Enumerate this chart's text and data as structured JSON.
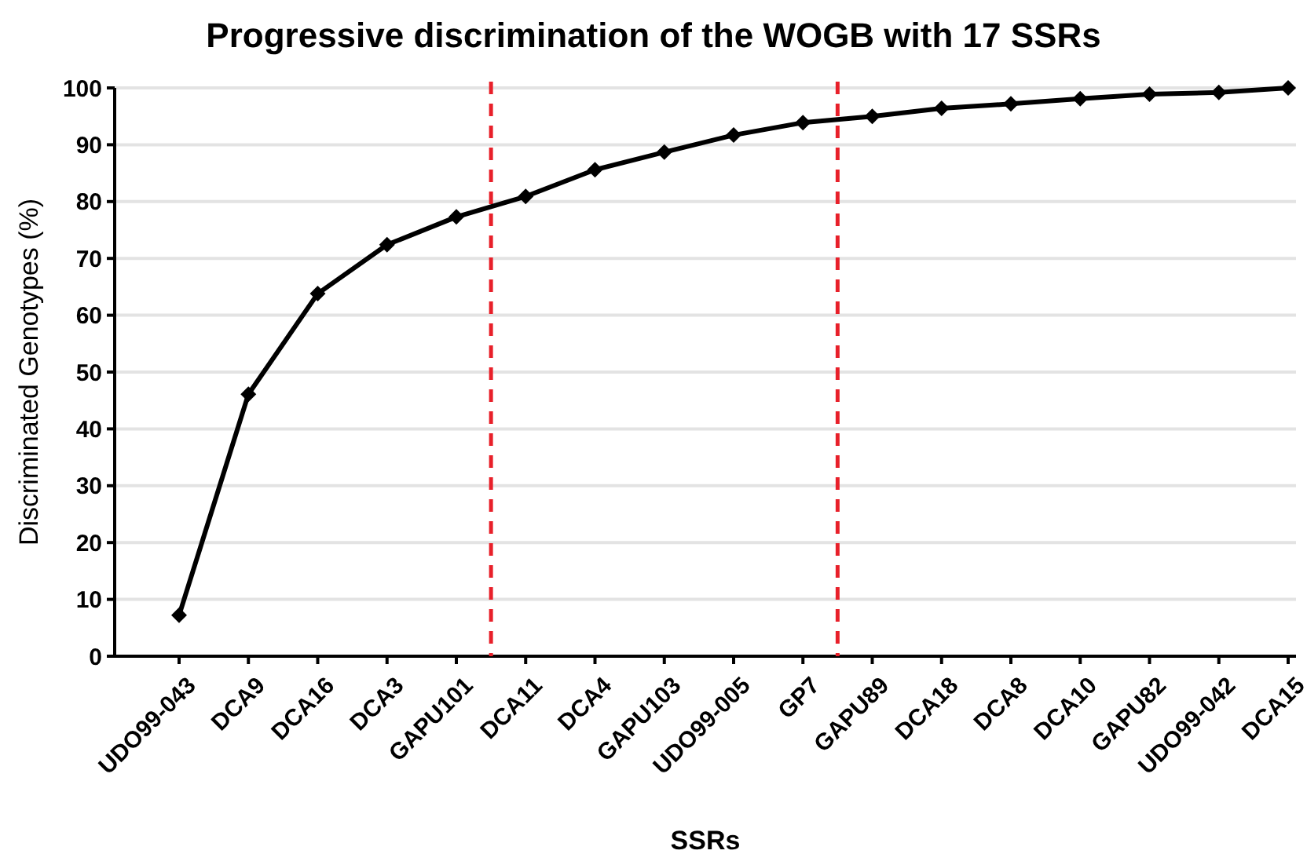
{
  "chart_data": {
    "type": "line",
    "title": "Progressive discrimination of the WOGB with 17 SSRs",
    "xlabel": "SSRs",
    "ylabel": "Discriminated Genotypes (%)",
    "categories": [
      "UDO99-043",
      "DCA9",
      "DCA16",
      "DCA3",
      "GAPU101",
      "DCA11",
      "DCA4",
      "GAPU103",
      "UDO99-005",
      "GP7",
      "GAPU89",
      "DCA18",
      "DCA8",
      "DCA10",
      "GAPU82",
      "UDO99-042",
      "DCA15"
    ],
    "series": [
      {
        "color": "#000000",
        "values": [
          7.2,
          46.1,
          63.8,
          72.4,
          77.3,
          80.9,
          85.6,
          88.7,
          91.7,
          93.9,
          95.0,
          96.4,
          97.2,
          98.1,
          98.9,
          99.2,
          100
        ]
      }
    ],
    "ylim": [
      0,
      100
    ],
    "yticks": [
      0,
      10,
      20,
      30,
      40,
      50,
      60,
      70,
      80,
      90,
      100
    ],
    "grid": "y",
    "marker": "diamond",
    "line_style": "solid"
  }
}
